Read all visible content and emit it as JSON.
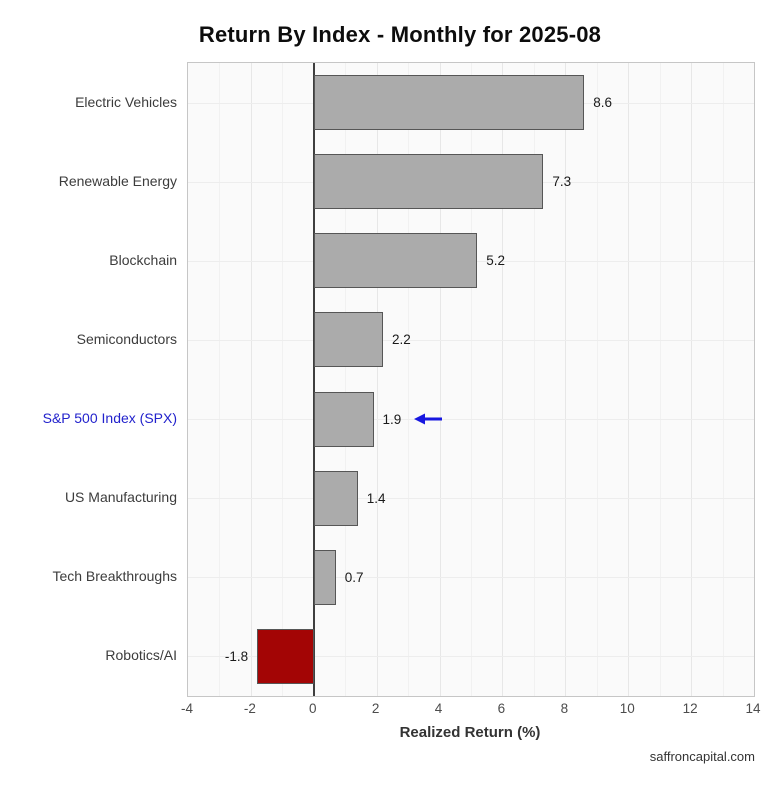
{
  "chart_data": {
    "type": "bar",
    "orientation": "horizontal",
    "title": "Return By Index - Monthly for 2025-08",
    "xlabel": "Realized Return (%)",
    "categories": [
      "Electric Vehicles",
      "Renewable Energy",
      "Blockchain",
      "Semiconductors",
      "S&P 500 Index (SPX)",
      "US Manufacturing",
      "Tech Breakthroughs",
      "Robotics/AI"
    ],
    "values": [
      8.6,
      7.3,
      5.2,
      2.2,
      1.9,
      1.4,
      0.7,
      -1.8
    ],
    "value_labels": [
      "8.6",
      "7.3",
      "5.2",
      "2.2",
      "1.9",
      "1.4",
      "0.7",
      "-1.8"
    ],
    "xlim": [
      -4,
      14
    ],
    "x_ticks": [
      -4,
      -2,
      0,
      2,
      4,
      6,
      8,
      10,
      12,
      14
    ],
    "grid": true,
    "colors": {
      "positive_bar": "#ababab",
      "negative_bar": "#a30505",
      "bar_edge": "#565656",
      "highlight_label": "#2222cc",
      "arrow": "#1717e0"
    },
    "highlight": {
      "category": "S&P 500 Index (SPX)",
      "index": 4,
      "annotation": "left-arrow"
    },
    "footer": "saffroncapital.com"
  }
}
